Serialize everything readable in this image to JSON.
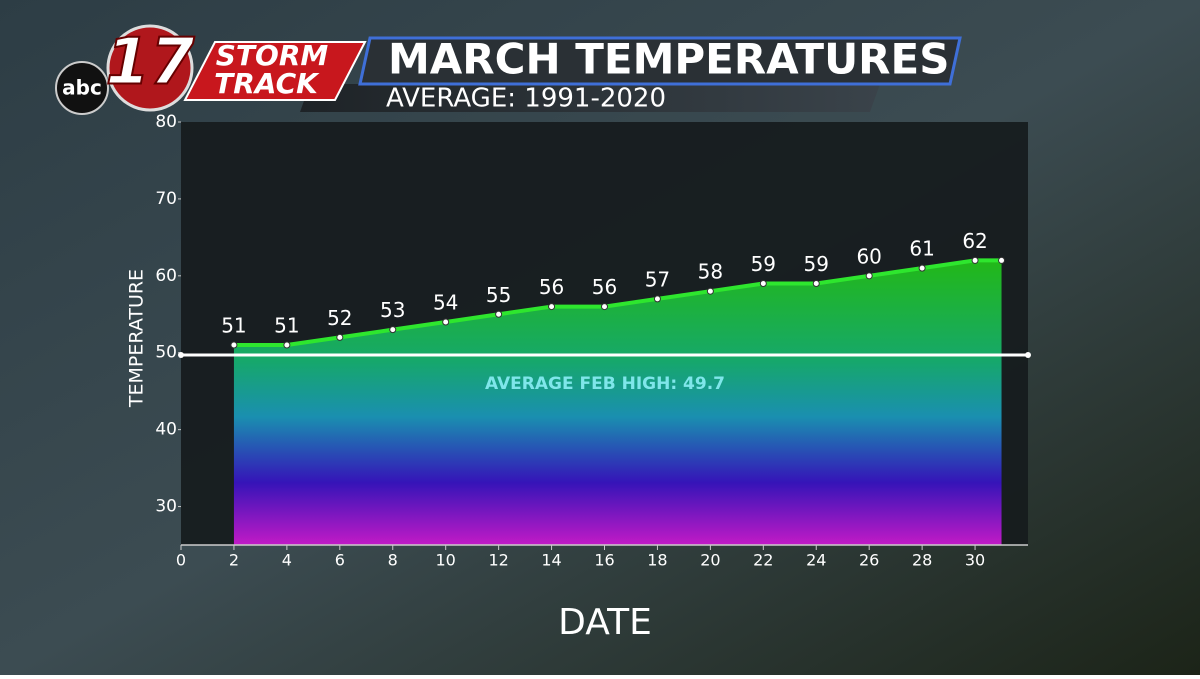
{
  "logo": {
    "network": "abc",
    "channel": "17",
    "brand_lines": [
      "STORM",
      "TRACK"
    ]
  },
  "chart_data": {
    "type": "area",
    "title": "MARCH TEMPERATURES",
    "subtitle": "AVERAGE: 1991-2020",
    "x_label": "DATE",
    "y_label": "TEMPERATURE",
    "x": [
      2,
      4,
      6,
      8,
      10,
      12,
      14,
      16,
      18,
      20,
      22,
      24,
      26,
      28,
      30,
      31
    ],
    "values": [
      51,
      51,
      52,
      53,
      54,
      55,
      56,
      56,
      57,
      58,
      59,
      59,
      60,
      61,
      62,
      62
    ],
    "value_labels": [
      "51",
      "51",
      "52",
      "53",
      "54",
      "55",
      "56",
      "56",
      "57",
      "58",
      "59",
      "59",
      "60",
      "61",
      "62",
      null
    ],
    "color": "#2ee62e",
    "xlim": [
      0,
      32
    ],
    "xticks": [
      0,
      2,
      4,
      6,
      8,
      10,
      12,
      14,
      16,
      18,
      20,
      22,
      24,
      26,
      28,
      30
    ],
    "ylim": [
      25,
      80
    ],
    "yticks": [
      30,
      40,
      50,
      60,
      70,
      80
    ],
    "reference": {
      "value": 49.7,
      "label": "AVERAGE FEB HIGH: 49.7"
    }
  }
}
